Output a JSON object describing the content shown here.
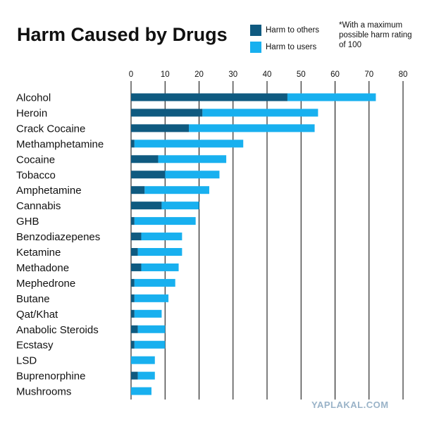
{
  "title": "Harm Caused by Drugs",
  "legend": {
    "others": "Harm to others",
    "users": "Harm to users"
  },
  "note": "*With a maximum possible harm rating of 100",
  "watermark": "YAPLAKAL.COM",
  "colors": {
    "others": "#0f5a80",
    "users": "#18b0ef",
    "grid": "#000000"
  },
  "chart_data": {
    "type": "bar",
    "orientation": "horizontal",
    "stacked": true,
    "title": "Harm Caused by Drugs",
    "xlim": [
      0,
      80
    ],
    "xticks": [
      0,
      10,
      20,
      30,
      40,
      50,
      60,
      70,
      80
    ],
    "grid": "vertical lines",
    "legend_position": "top-right",
    "categories": [
      "Alcohol",
      "Heroin",
      "Crack Cocaine",
      "Methamphetamine",
      "Cocaine",
      "Tobacco",
      "Amphetamine",
      "Cannabis",
      "GHB",
      "Benzodiazepenes",
      "Ketamine",
      "Methadone",
      "Mephedrone",
      "Butane",
      "Qat/Khat",
      "Anabolic Steroids",
      "Ecstasy",
      "LSD",
      "Buprenorphine",
      "Mushrooms"
    ],
    "series": [
      {
        "name": "Harm to others",
        "values": [
          46,
          21,
          17,
          1,
          8,
          10,
          4,
          9,
          1,
          3,
          2,
          3,
          1,
          1,
          1,
          2,
          1,
          0,
          2,
          0
        ]
      },
      {
        "name": "Harm to users",
        "values": [
          26,
          34,
          37,
          32,
          20,
          16,
          19,
          11,
          18,
          12,
          13,
          11,
          12,
          10,
          8,
          8,
          9,
          7,
          5,
          6
        ]
      }
    ]
  }
}
